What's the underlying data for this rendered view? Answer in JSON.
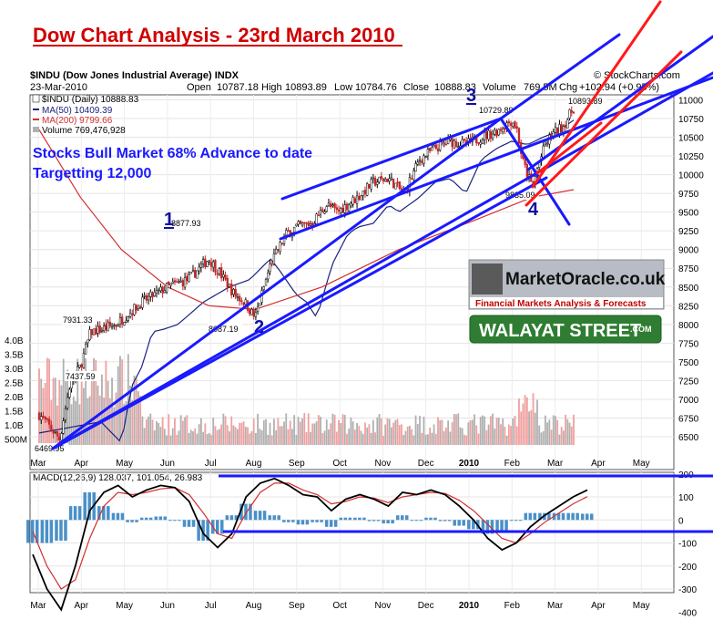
{
  "header": {
    "title": "Dow Chart Analysis - 23rd March 2010",
    "symbol_line": "$INDU (Dow Jones Industrial Average)  INDX",
    "date": "23-Mar-2010",
    "open_label": "Open",
    "open": "10787.18",
    "high_label": "High",
    "high": "10893.89",
    "low_label": "Low",
    "low": "10784.76",
    "close_label": "Close",
    "close": "10888.83",
    "volume_label": "Volume",
    "volume": "769.5M",
    "chg_label": "Chg",
    "chg": "+102.94 (+0.95%)",
    "watermark": "© StockCharts.com"
  },
  "legend": {
    "price": "$INDU (Daily) 10888.83",
    "ma50": "MA(50) 10409.39",
    "ma200": "MA(200) 9799.66",
    "volume": "Volume 769,476,928"
  },
  "annotations": {
    "line1": "Stocks Bull Market 68% Advance to date",
    "line2": "Targetting 12,000"
  },
  "logos": {
    "mo_name": "MarketOracle.co.uk",
    "mo_tag": "Financial Markets Analysis & Forecasts",
    "ws": "WALAYAT STREET",
    "ws_com": ".COM"
  },
  "macd": {
    "label": "MACD(12,26,9) 128.037, 101.054, 26.983"
  },
  "colors": {
    "title": "#d00000",
    "trendline": "#1a1aff",
    "target_line": "#ff1a1a",
    "ma50": "#1a237e",
    "ma200": "#d32f2f",
    "up_candle": "#000000",
    "down_candle": "#c62828",
    "volume_up": "#b0b0b0",
    "volume_down": "#f0a0a0",
    "macd_line": "#000000",
    "signal_line": "#d32f2f",
    "histogram": "#4a90c8"
  },
  "chart_data": [
    {
      "type": "line",
      "name": "price-panel",
      "x_tick_labels": [
        "Mar",
        "Apr",
        "May",
        "Jun",
        "Jul",
        "Aug",
        "Sep",
        "Oct",
        "Nov",
        "Dec",
        "2010",
        "Feb",
        "Mar",
        "Apr",
        "May"
      ],
      "ylim": [
        6250,
        11000
      ],
      "y_tick_labels": [
        11000,
        10750,
        10500,
        10250,
        10000,
        9750,
        9500,
        9250,
        9000,
        8750,
        8500,
        8250,
        8000,
        7750,
        7500,
        7250,
        7000,
        6750,
        6500
      ],
      "volume_tick_labels": [
        "4.0B",
        "3.5B",
        "3.0B",
        "2.5B",
        "2.0B",
        "1.5B",
        "1.0B",
        "500M"
      ],
      "price_series": [
        {
          "x": 0,
          "y": 6800
        },
        {
          "x": 0.04,
          "y": 6469.95
        },
        {
          "x": 0.06,
          "y": 7200
        },
        {
          "x": 0.08,
          "y": 7437.59
        },
        {
          "x": 0.1,
          "y": 7900
        },
        {
          "x": 0.12,
          "y": 7931.33
        },
        {
          "x": 0.15,
          "y": 8000
        },
        {
          "x": 0.2,
          "y": 8300
        },
        {
          "x": 0.25,
          "y": 8500
        },
        {
          "x": 0.29,
          "y": 8600
        },
        {
          "x": 0.33,
          "y": 8877.93
        },
        {
          "x": 0.35,
          "y": 8700
        },
        {
          "x": 0.38,
          "y": 8400
        },
        {
          "x": 0.4,
          "y": 8300
        },
        {
          "x": 0.42,
          "y": 8087.19
        },
        {
          "x": 0.45,
          "y": 8800
        },
        {
          "x": 0.48,
          "y": 9200
        },
        {
          "x": 0.5,
          "y": 9300
        },
        {
          "x": 0.53,
          "y": 9350
        },
        {
          "x": 0.56,
          "y": 9600
        },
        {
          "x": 0.58,
          "y": 9500
        },
        {
          "x": 0.62,
          "y": 9700
        },
        {
          "x": 0.65,
          "y": 9900
        },
        {
          "x": 0.68,
          "y": 9950
        },
        {
          "x": 0.71,
          "y": 9750
        },
        {
          "x": 0.74,
          "y": 10200
        },
        {
          "x": 0.77,
          "y": 10350
        },
        {
          "x": 0.8,
          "y": 10450
        },
        {
          "x": 0.83,
          "y": 10400
        },
        {
          "x": 0.86,
          "y": 10500
        },
        {
          "x": 0.89,
          "y": 10580
        },
        {
          "x": 0.92,
          "y": 10729.89
        },
        {
          "x": 0.93,
          "y": 10600
        },
        {
          "x": 0.94,
          "y": 10200
        },
        {
          "x": 0.95,
          "y": 10000
        },
        {
          "x": 0.96,
          "y": 9835.09
        },
        {
          "x": 0.97,
          "y": 10100
        },
        {
          "x": 0.985,
          "y": 10400
        },
        {
          "x": 1.0,
          "y": 10550
        },
        {
          "x": 1.02,
          "y": 10650
        },
        {
          "x": 1.04,
          "y": 10893.89
        }
      ],
      "point_labels": [
        {
          "text": "6469.95",
          "y": 6469.95
        },
        {
          "text": "7437.59",
          "y": 7437.59
        },
        {
          "text": "7931.33",
          "y": 7931.33
        },
        {
          "text": "8877.93",
          "y": 8877.93
        },
        {
          "text": "8087.19",
          "y": 8087.19
        },
        {
          "text": "10729.89",
          "y": 10729.89
        },
        {
          "text": "9835.09",
          "y": 9835.09
        },
        {
          "text": "10893.89",
          "y": 10893.89
        }
      ],
      "wave_labels": [
        "1",
        "2",
        "3",
        "4"
      ]
    },
    {
      "type": "line",
      "name": "macd-panel",
      "ylim": [
        -400,
        200
      ],
      "y_tick_labels": [
        200,
        100,
        0,
        -100,
        -200,
        -300,
        -400
      ],
      "x_tick_labels": [
        "Mar",
        "Apr",
        "May",
        "Jun",
        "Jul",
        "Aug",
        "Sep",
        "Oct",
        "Nov",
        "Dec",
        "2010",
        "Feb",
        "Mar",
        "Apr",
        "May"
      ],
      "macd_series": [
        -150,
        -300,
        -390,
        -200,
        40,
        120,
        150,
        100,
        130,
        150,
        140,
        80,
        -60,
        -120,
        -60,
        100,
        160,
        180,
        150,
        110,
        100,
        40,
        90,
        110,
        90,
        60,
        120,
        110,
        130,
        110,
        60,
        0,
        -80,
        -130,
        -100,
        -30,
        20,
        60,
        100,
        130
      ],
      "signal_series": [
        -50,
        -200,
        -300,
        -260,
        -80,
        60,
        120,
        110,
        120,
        135,
        140,
        110,
        30,
        -60,
        -80,
        30,
        120,
        160,
        160,
        130,
        110,
        70,
        80,
        100,
        95,
        75,
        100,
        110,
        120,
        115,
        85,
        40,
        -20,
        -80,
        -100,
        -60,
        -10,
        30,
        70,
        101
      ],
      "histogram_series": [
        -100,
        -100,
        -90,
        60,
        120,
        60,
        30,
        -10,
        10,
        15,
        0,
        -30,
        -90,
        -60,
        20,
        70,
        40,
        20,
        -10,
        -20,
        -10,
        -30,
        10,
        10,
        -5,
        -15,
        20,
        0,
        10,
        -5,
        -25,
        -40,
        -60,
        -50,
        0,
        30,
        30,
        30,
        30,
        27
      ]
    }
  ]
}
